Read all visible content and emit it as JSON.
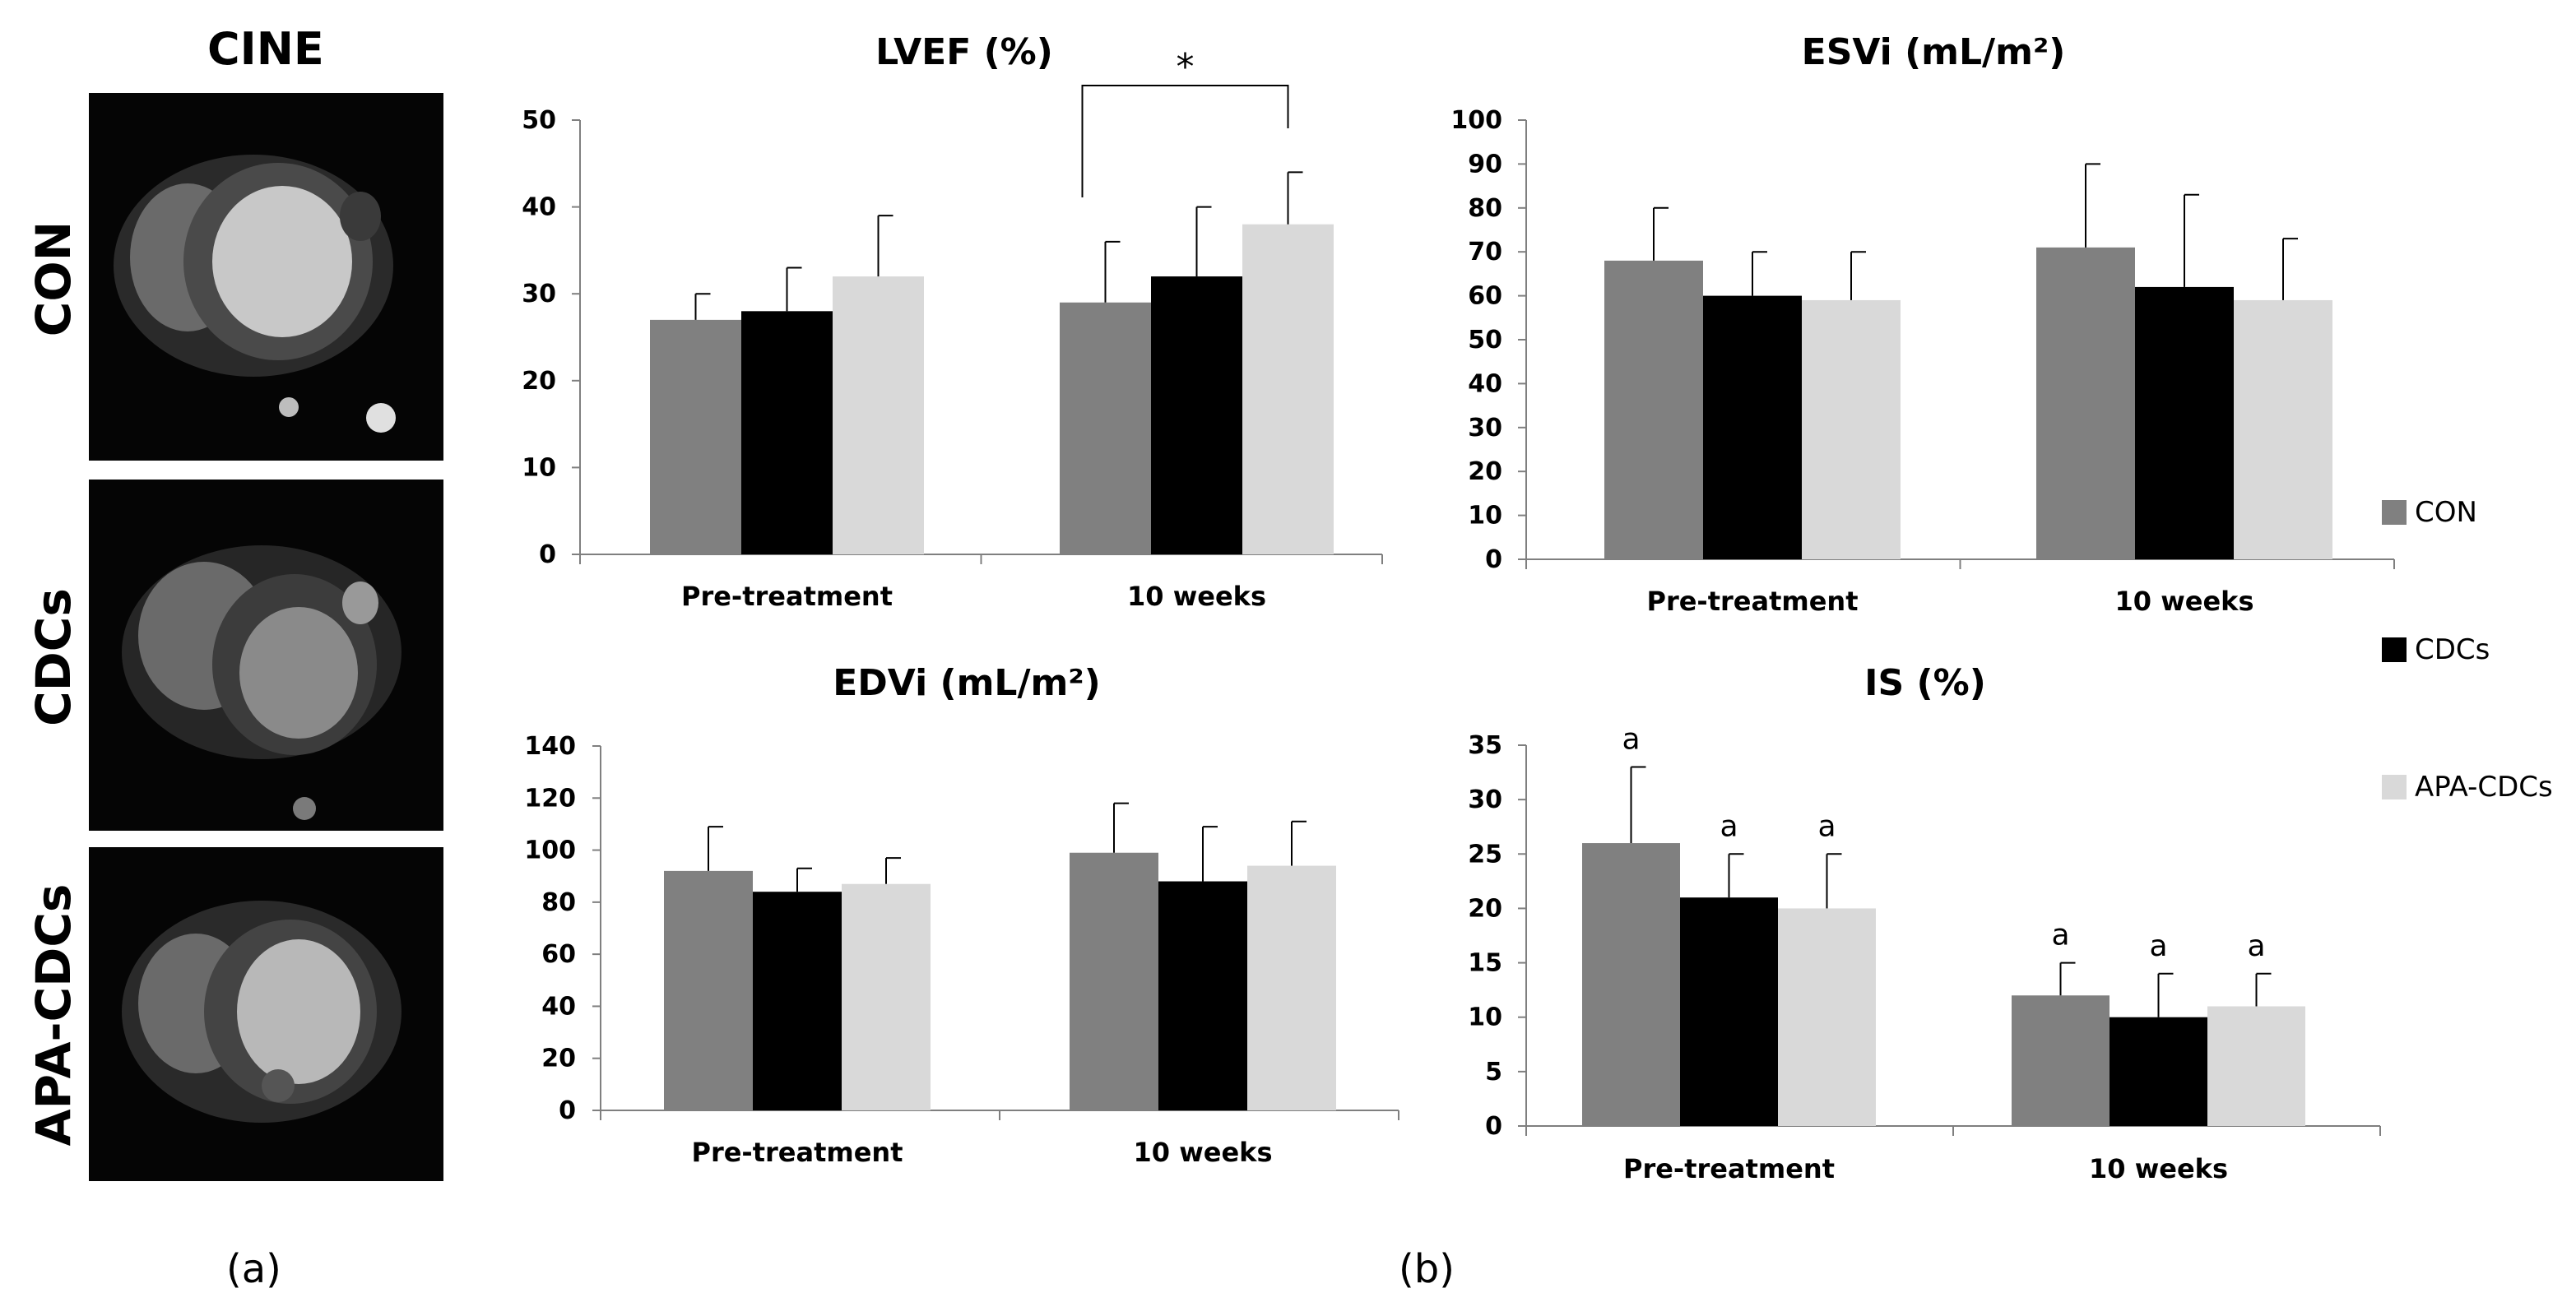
{
  "figure": {
    "cine_title": "CINE",
    "row_labels": [
      "CON",
      "CDCs",
      "APA-CDCs"
    ],
    "panel_a": "(a)",
    "panel_b": "(b)"
  },
  "legend": [
    {
      "name": "CON",
      "color": "#808080"
    },
    {
      "name": "CDCs",
      "color": "#000000"
    },
    {
      "name": "APA-CDCs",
      "color": "#d9d9d9"
    }
  ],
  "chart_data": [
    {
      "type": "bar",
      "title": "LVEF (%)",
      "categories": [
        "Pre-treatment",
        "10 weeks"
      ],
      "ylim": [
        0,
        50
      ],
      "yticks": [
        0,
        10,
        20,
        30,
        40,
        50
      ],
      "series": [
        {
          "name": "CON",
          "values": [
            27,
            29
          ],
          "errors": [
            3,
            7
          ]
        },
        {
          "name": "CDCs",
          "values": [
            28,
            32
          ],
          "errors": [
            5,
            8
          ]
        },
        {
          "name": "APA-CDCs",
          "values": [
            32,
            38
          ],
          "errors": [
            7,
            6
          ]
        }
      ],
      "annotations": [
        {
          "type": "bracket",
          "label": "*",
          "category": 1,
          "from_series": 0,
          "to_series": 2
        }
      ]
    },
    {
      "type": "bar",
      "title": "ESVi (mL/m²)",
      "categories": [
        "Pre-treatment",
        "10 weeks"
      ],
      "ylim": [
        0,
        100
      ],
      "yticks": [
        0,
        10,
        20,
        30,
        40,
        50,
        60,
        70,
        80,
        90,
        100
      ],
      "series": [
        {
          "name": "CON",
          "values": [
            68,
            71
          ],
          "errors": [
            12,
            19
          ]
        },
        {
          "name": "CDCs",
          "values": [
            60,
            62
          ],
          "errors": [
            10,
            21
          ]
        },
        {
          "name": "APA-CDCs",
          "values": [
            59,
            59
          ],
          "errors": [
            11,
            14
          ]
        }
      ]
    },
    {
      "type": "bar",
      "title": "EDVi (mL/m²)",
      "categories": [
        "Pre-treatment",
        "10 weeks"
      ],
      "ylim": [
        0,
        140
      ],
      "yticks": [
        0,
        20,
        40,
        60,
        80,
        100,
        120,
        140
      ],
      "series": [
        {
          "name": "CON",
          "values": [
            92,
            99
          ],
          "errors": [
            17,
            19
          ]
        },
        {
          "name": "CDCs",
          "values": [
            84,
            88
          ],
          "errors": [
            9,
            21
          ]
        },
        {
          "name": "APA-CDCs",
          "values": [
            87,
            94
          ],
          "errors": [
            10,
            17
          ]
        }
      ]
    },
    {
      "type": "bar",
      "title": "IS (%)",
      "categories": [
        "Pre-treatment",
        "10 weeks"
      ],
      "ylim": [
        0,
        35
      ],
      "yticks": [
        0,
        5,
        10,
        15,
        20,
        25,
        30,
        35
      ],
      "series": [
        {
          "name": "CON",
          "values": [
            26,
            12
          ],
          "errors": [
            7,
            3
          ],
          "labels": [
            "a",
            "a"
          ]
        },
        {
          "name": "CDCs",
          "values": [
            21,
            10
          ],
          "errors": [
            4,
            4
          ],
          "labels": [
            "a",
            "a"
          ]
        },
        {
          "name": "APA-CDCs",
          "values": [
            20,
            11
          ],
          "errors": [
            5,
            3
          ],
          "labels": [
            "a",
            "a"
          ]
        }
      ]
    }
  ]
}
